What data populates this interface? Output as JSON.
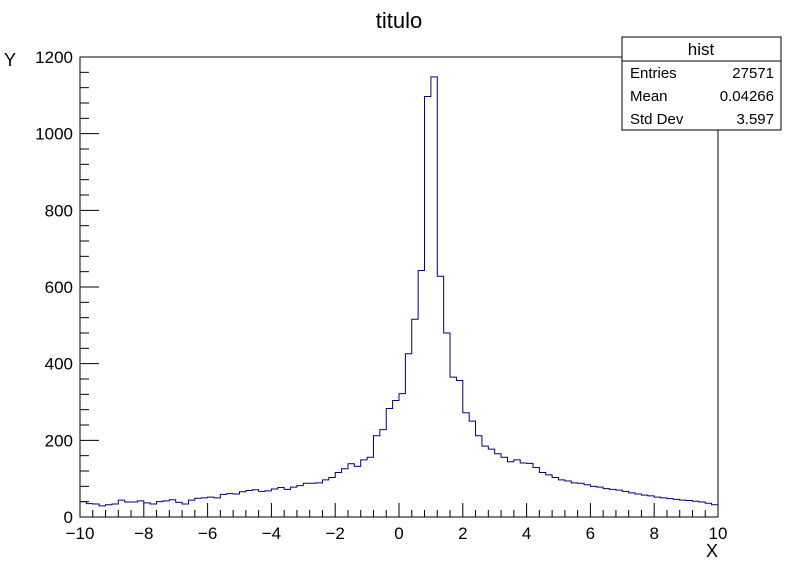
{
  "chart_data": {
    "type": "bar",
    "style": "step-histogram",
    "title": "titulo",
    "xlabel": "X",
    "ylabel": "Y",
    "xlim": [
      -10,
      10
    ],
    "ylim": [
      0,
      1200
    ],
    "x_ticks": [
      -10,
      -8,
      -6,
      -4,
      -2,
      0,
      2,
      4,
      6,
      8,
      10
    ],
    "x_tick_labels": [
      "−10",
      "−8",
      "−6",
      "−4",
      "−2",
      "0",
      "2",
      "4",
      "6",
      "8",
      "10"
    ],
    "y_ticks": [
      0,
      200,
      400,
      600,
      800,
      1000,
      1200
    ],
    "y_tick_labels": [
      "0",
      "200",
      "400",
      "600",
      "800",
      "1000",
      "1200"
    ],
    "grid": false,
    "legend": "none",
    "line_color": "#000080",
    "bins": {
      "min": -10,
      "max": 10,
      "count": 100
    },
    "values": [
      40,
      35,
      34,
      29,
      32,
      34,
      44,
      39,
      39,
      42,
      37,
      34,
      40,
      42,
      45,
      38,
      34,
      44,
      49,
      50,
      52,
      50,
      59,
      61,
      60,
      66,
      69,
      71,
      67,
      68,
      73,
      77,
      72,
      78,
      82,
      88,
      88,
      89,
      97,
      103,
      116,
      126,
      139,
      132,
      149,
      156,
      212,
      228,
      283,
      304,
      322,
      426,
      516,
      643,
      1097,
      1148,
      628,
      480,
      365,
      356,
      272,
      250,
      212,
      185,
      177,
      165,
      156,
      144,
      149,
      141,
      140,
      129,
      116,
      110,
      103,
      97,
      94,
      89,
      88,
      84,
      80,
      78,
      74,
      72,
      70,
      67,
      63,
      60,
      57,
      55,
      52,
      50,
      48,
      46,
      44,
      43,
      41,
      39,
      36,
      32
    ],
    "stats": {
      "title": "hist",
      "rows": [
        {
          "label": "Entries",
          "value": "27571"
        },
        {
          "label": "Mean",
          "value": "0.04266"
        },
        {
          "label": "Std Dev",
          "value": "3.597"
        }
      ]
    }
  }
}
